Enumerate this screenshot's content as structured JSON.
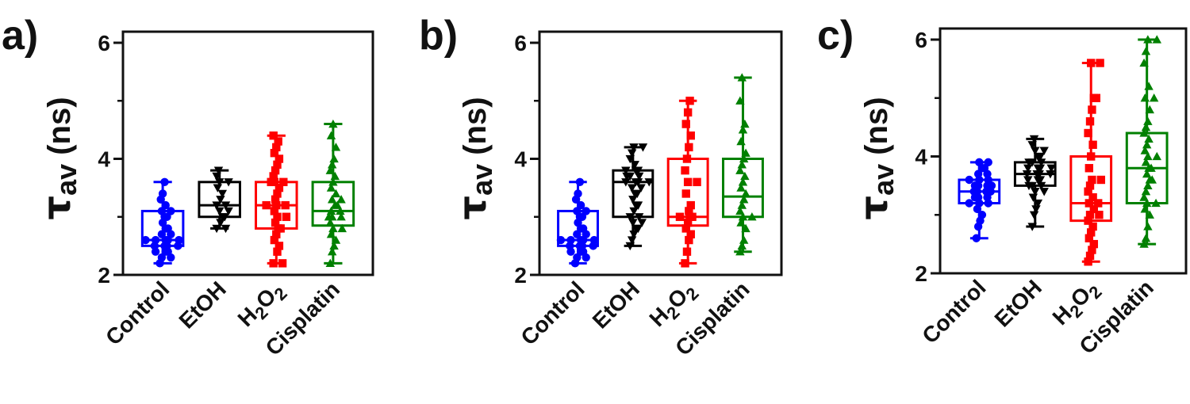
{
  "chart_data": [
    {
      "panel_label": "a)",
      "type": "box",
      "ylabel": {
        "symbol": "τ",
        "subscript": "av",
        "unit": " (ns)"
      },
      "ylim": [
        2,
        6
      ],
      "yticks": [
        "2",
        "4",
        "6"
      ],
      "categories": [
        "Control",
        "EtOH",
        "H2O2",
        "Cisplatin"
      ],
      "series": [
        {
          "color": "#0000ff",
          "marker": "circle",
          "min": 2.2,
          "q1": 2.5,
          "median": 2.6,
          "q3": 3.1,
          "max": 3.6,
          "points": [
            2.2,
            2.3,
            2.3,
            2.4,
            2.4,
            2.4,
            2.5,
            2.5,
            2.5,
            2.5,
            2.6,
            2.6,
            2.6,
            2.6,
            2.6,
            2.7,
            2.7,
            2.8,
            2.8,
            2.9,
            3.0,
            3.0,
            3.1,
            3.1,
            3.2,
            3.3,
            3.4,
            3.6
          ]
        },
        {
          "color": "#000000",
          "marker": "triangle-down",
          "min": 2.8,
          "q1": 3.0,
          "median": 3.2,
          "q3": 3.6,
          "max": 3.8,
          "points": [
            2.8,
            2.8,
            2.9,
            3.0,
            3.0,
            3.1,
            3.1,
            3.2,
            3.2,
            3.3,
            3.4,
            3.5,
            3.6,
            3.6,
            3.7,
            3.8
          ]
        },
        {
          "color": "#ff0000",
          "marker": "square",
          "min": 2.2,
          "q1": 2.8,
          "median": 3.2,
          "q3": 3.6,
          "max": 4.4,
          "points": [
            2.2,
            2.2,
            2.4,
            2.5,
            2.6,
            2.7,
            2.8,
            2.8,
            2.9,
            3.0,
            3.0,
            3.1,
            3.2,
            3.2,
            3.2,
            3.3,
            3.4,
            3.5,
            3.6,
            3.6,
            3.6,
            3.7,
            3.8,
            3.9,
            4.0,
            4.1,
            4.2,
            4.3,
            4.4
          ]
        },
        {
          "color": "#008000",
          "marker": "triangle-up",
          "min": 2.2,
          "q1": 2.85,
          "median": 3.1,
          "q3": 3.6,
          "max": 4.6,
          "points": [
            2.2,
            2.4,
            2.5,
            2.6,
            2.7,
            2.8,
            2.8,
            2.9,
            3.0,
            3.0,
            3.0,
            3.1,
            3.1,
            3.2,
            3.2,
            3.3,
            3.3,
            3.4,
            3.5,
            3.6,
            3.7,
            3.8,
            3.9,
            4.0,
            4.2,
            4.4,
            4.6
          ]
        }
      ]
    },
    {
      "panel_label": "b)",
      "type": "box",
      "ylabel": {
        "symbol": "τ",
        "subscript": "av",
        "unit": " (ns)"
      },
      "ylim": [
        2,
        6
      ],
      "yticks": [
        "2",
        "4",
        "6"
      ],
      "categories": [
        "Control",
        "EtOH",
        "H2O2",
        "Cisplatin"
      ],
      "series": [
        {
          "color": "#0000ff",
          "marker": "circle",
          "min": 2.2,
          "q1": 2.5,
          "median": 2.6,
          "q3": 3.1,
          "max": 3.6,
          "points": [
            2.2,
            2.3,
            2.3,
            2.4,
            2.4,
            2.4,
            2.5,
            2.5,
            2.5,
            2.5,
            2.6,
            2.6,
            2.6,
            2.6,
            2.6,
            2.7,
            2.7,
            2.8,
            2.8,
            2.9,
            3.0,
            3.0,
            3.1,
            3.1,
            3.2,
            3.3,
            3.4,
            3.6
          ]
        },
        {
          "color": "#000000",
          "marker": "triangle-down",
          "min": 2.5,
          "q1": 3.0,
          "median": 3.6,
          "q3": 3.8,
          "max": 4.2,
          "points": [
            2.5,
            2.6,
            2.7,
            2.8,
            2.8,
            2.9,
            2.9,
            3.0,
            3.0,
            3.1,
            3.2,
            3.2,
            3.3,
            3.4,
            3.4,
            3.5,
            3.5,
            3.6,
            3.6,
            3.6,
            3.6,
            3.7,
            3.7,
            3.7,
            3.8,
            3.8,
            3.8,
            3.9,
            4.0,
            4.1,
            4.2,
            4.2
          ]
        },
        {
          "color": "#ff0000",
          "marker": "square",
          "min": 2.2,
          "q1": 2.85,
          "median": 3.0,
          "q3": 4.0,
          "max": 5.0,
          "points": [
            2.2,
            2.4,
            2.6,
            2.7,
            2.8,
            2.9,
            3.0,
            3.0,
            3.0,
            3.1,
            3.2,
            3.4,
            3.6,
            3.6,
            3.8,
            4.0,
            4.2,
            4.4,
            4.6,
            4.8,
            5.0
          ]
        },
        {
          "color": "#008000",
          "marker": "triangle-up",
          "min": 2.4,
          "q1": 3.0,
          "median": 3.35,
          "q3": 4.0,
          "max": 5.4,
          "points": [
            2.4,
            2.5,
            2.6,
            2.8,
            2.9,
            3.0,
            3.0,
            3.1,
            3.2,
            3.3,
            3.4,
            3.5,
            3.6,
            3.7,
            3.8,
            3.9,
            4.0,
            4.1,
            4.3,
            4.5,
            4.6,
            5.0,
            5.4
          ]
        }
      ]
    },
    {
      "panel_label": "c)",
      "type": "box",
      "ylabel": {
        "symbol": "τ",
        "subscript": "av",
        "unit": " (ns)"
      },
      "ylim": [
        2,
        6
      ],
      "yticks": [
        "2",
        "4",
        "6"
      ],
      "categories": [
        "Control",
        "EtOH",
        "H2O2",
        "Cisplatin"
      ],
      "series": [
        {
          "color": "#0000ff",
          "marker": "circle",
          "min": 2.6,
          "q1": 3.2,
          "median": 3.4,
          "q3": 3.6,
          "max": 3.9,
          "points": [
            2.6,
            2.8,
            2.9,
            3.0,
            3.1,
            3.2,
            3.2,
            3.2,
            3.3,
            3.3,
            3.3,
            3.4,
            3.4,
            3.4,
            3.4,
            3.5,
            3.5,
            3.5,
            3.5,
            3.6,
            3.6,
            3.6,
            3.7,
            3.7,
            3.8,
            3.8,
            3.9,
            3.9
          ]
        },
        {
          "color": "#000000",
          "marker": "triangle-down",
          "min": 2.8,
          "q1": 3.5,
          "median": 3.7,
          "q3": 3.9,
          "max": 4.3,
          "points": [
            2.8,
            3.0,
            3.1,
            3.2,
            3.3,
            3.4,
            3.4,
            3.5,
            3.5,
            3.5,
            3.6,
            3.6,
            3.6,
            3.7,
            3.7,
            3.7,
            3.7,
            3.8,
            3.8,
            3.8,
            3.8,
            3.9,
            3.9,
            3.9,
            4.0,
            4.0,
            4.1,
            4.1,
            4.2,
            4.3
          ]
        },
        {
          "color": "#ff0000",
          "marker": "square",
          "min": 2.2,
          "q1": 2.9,
          "median": 3.2,
          "q3": 4.0,
          "max": 5.6,
          "points": [
            2.2,
            2.3,
            2.4,
            2.5,
            2.6,
            2.7,
            2.8,
            2.9,
            3.0,
            3.0,
            3.1,
            3.2,
            3.2,
            3.3,
            3.4,
            3.5,
            3.6,
            3.6,
            3.8,
            4.0,
            4.2,
            4.4,
            4.6,
            4.8,
            5.0,
            5.0,
            5.6,
            5.6
          ]
        },
        {
          "color": "#008000",
          "marker": "triangle-up",
          "min": 2.5,
          "q1": 3.2,
          "median": 3.8,
          "q3": 4.4,
          "max": 6.0,
          "points": [
            2.5,
            2.6,
            2.8,
            3.0,
            3.1,
            3.2,
            3.2,
            3.3,
            3.4,
            3.5,
            3.6,
            3.6,
            3.7,
            3.8,
            3.8,
            3.9,
            4.0,
            4.0,
            4.1,
            4.2,
            4.3,
            4.4,
            4.5,
            4.6,
            4.8,
            5.0,
            5.0,
            5.2,
            5.6,
            5.8,
            6.0,
            6.0
          ]
        }
      ]
    }
  ]
}
